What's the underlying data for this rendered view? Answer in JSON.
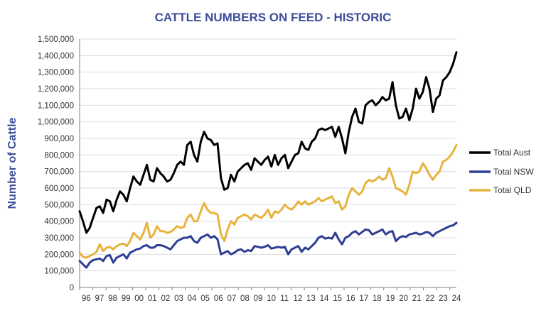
{
  "chart_data": {
    "type": "line",
    "title": "CATTLE NUMBERS ON FEED   - HISTORIC",
    "xlabel": "",
    "ylabel": "Number of Cattle",
    "ylim": [
      0,
      1500000
    ],
    "y_ticks": [
      0,
      100000,
      200000,
      300000,
      400000,
      500000,
      600000,
      700000,
      800000,
      900000,
      1000000,
      1100000,
      1200000,
      1300000,
      1400000,
      1500000
    ],
    "y_tick_labels": [
      "0",
      "100,000",
      "200,000",
      "300,000",
      "400,000",
      "500,000",
      "600,000",
      "700,000",
      "800,000",
      "900,000",
      "1,000,000",
      "1,100,000",
      "1,200,000",
      "1,300,000",
      "1,400,000",
      "1,500,000"
    ],
    "x_tick_labels": [
      "96",
      "97",
      "98",
      "99",
      "00",
      "01",
      "02",
      "03",
      "04",
      "05",
      "06",
      "07",
      "08",
      "09",
      "10",
      "11",
      "12",
      "13",
      "14",
      "15",
      "16",
      "17",
      "18",
      "19",
      "20",
      "21",
      "22",
      "23",
      "24"
    ],
    "grid": true,
    "legend_position": "right",
    "series": [
      {
        "name": "Total Aust",
        "color": "#000000",
        "values": [
          460000,
          400000,
          330000,
          360000,
          420000,
          480000,
          490000,
          450000,
          530000,
          520000,
          460000,
          530000,
          580000,
          560000,
          520000,
          600000,
          670000,
          640000,
          620000,
          680000,
          740000,
          650000,
          640000,
          720000,
          690000,
          670000,
          640000,
          650000,
          690000,
          740000,
          760000,
          740000,
          860000,
          880000,
          800000,
          760000,
          880000,
          940000,
          900000,
          890000,
          860000,
          870000,
          660000,
          590000,
          600000,
          680000,
          640000,
          700000,
          720000,
          740000,
          750000,
          710000,
          780000,
          760000,
          740000,
          770000,
          790000,
          730000,
          800000,
          740000,
          780000,
          800000,
          720000,
          760000,
          800000,
          810000,
          880000,
          840000,
          830000,
          880000,
          900000,
          950000,
          960000,
          950000,
          960000,
          970000,
          910000,
          970000,
          900000,
          810000,
          940000,
          1030000,
          1080000,
          1000000,
          990000,
          1100000,
          1120000,
          1130000,
          1100000,
          1120000,
          1150000,
          1130000,
          1140000,
          1240000,
          1100000,
          1020000,
          1030000,
          1080000,
          1010000,
          1080000,
          1200000,
          1140000,
          1180000,
          1270000,
          1200000,
          1060000,
          1140000,
          1160000,
          1250000,
          1270000,
          1300000,
          1350000,
          1420000
        ]
      },
      {
        "name": "Total NSW",
        "color": "#2e3e93",
        "values": [
          160000,
          140000,
          120000,
          150000,
          165000,
          170000,
          175000,
          160000,
          190000,
          195000,
          150000,
          180000,
          190000,
          200000,
          175000,
          210000,
          220000,
          230000,
          235000,
          250000,
          255000,
          240000,
          240000,
          255000,
          255000,
          250000,
          240000,
          230000,
          255000,
          280000,
          290000,
          300000,
          300000,
          310000,
          280000,
          270000,
          300000,
          310000,
          320000,
          300000,
          310000,
          290000,
          200000,
          210000,
          220000,
          200000,
          210000,
          225000,
          230000,
          215000,
          225000,
          220000,
          250000,
          245000,
          240000,
          245000,
          255000,
          235000,
          240000,
          245000,
          240000,
          245000,
          200000,
          230000,
          240000,
          250000,
          215000,
          240000,
          230000,
          250000,
          270000,
          300000,
          310000,
          295000,
          300000,
          295000,
          330000,
          290000,
          260000,
          300000,
          310000,
          330000,
          340000,
          320000,
          335000,
          350000,
          345000,
          320000,
          330000,
          340000,
          350000,
          320000,
          335000,
          340000,
          280000,
          300000,
          310000,
          305000,
          320000,
          325000,
          330000,
          320000,
          325000,
          335000,
          330000,
          310000,
          330000,
          340000,
          350000,
          360000,
          370000,
          375000,
          390000
        ]
      },
      {
        "name": "Total QLD",
        "color": "#e6b33d",
        "values": [
          210000,
          185000,
          180000,
          190000,
          200000,
          215000,
          260000,
          220000,
          240000,
          245000,
          230000,
          250000,
          260000,
          265000,
          250000,
          280000,
          330000,
          310000,
          290000,
          330000,
          390000,
          300000,
          320000,
          370000,
          340000,
          340000,
          330000,
          335000,
          350000,
          370000,
          360000,
          365000,
          420000,
          440000,
          400000,
          400000,
          460000,
          510000,
          470000,
          450000,
          450000,
          440000,
          320000,
          280000,
          350000,
          400000,
          380000,
          420000,
          430000,
          440000,
          430000,
          410000,
          440000,
          430000,
          420000,
          440000,
          470000,
          420000,
          460000,
          450000,
          470000,
          500000,
          480000,
          470000,
          490000,
          520000,
          500000,
          520000,
          500000,
          510000,
          520000,
          540000,
          520000,
          530000,
          540000,
          550000,
          510000,
          520000,
          470000,
          490000,
          560000,
          600000,
          580000,
          560000,
          580000,
          630000,
          650000,
          640000,
          650000,
          670000,
          650000,
          660000,
          720000,
          670000,
          600000,
          590000,
          580000,
          560000,
          620000,
          700000,
          690000,
          700000,
          750000,
          720000,
          680000,
          650000,
          680000,
          700000,
          760000,
          770000,
          790000,
          820000,
          860000
        ]
      }
    ]
  }
}
